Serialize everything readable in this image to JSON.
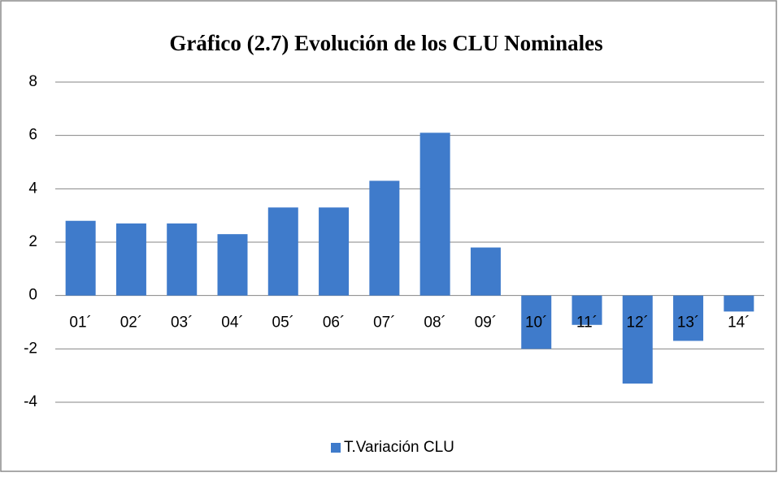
{
  "chart_data": {
    "type": "bar",
    "title": "Gráfico (2.7) Evolución de los CLU Nominales",
    "categories": [
      "01´",
      "02´",
      "03´",
      "04´",
      "05´",
      "06´",
      "07´",
      "08´",
      "09´",
      "10´",
      "11´",
      "12´",
      "13´",
      "14´"
    ],
    "series": [
      {
        "name": "T.Variación CLU",
        "color": "#3f7bcb",
        "values": [
          2.8,
          2.7,
          2.7,
          2.3,
          3.3,
          3.3,
          4.3,
          6.1,
          1.8,
          -2.0,
          -1.1,
          -3.3,
          -1.7,
          -0.6
        ]
      }
    ],
    "ylim": [
      -4,
      8
    ],
    "yticks": [
      -4,
      -2,
      0,
      2,
      4,
      6,
      8
    ],
    "grid": true,
    "legend": "bottom"
  }
}
